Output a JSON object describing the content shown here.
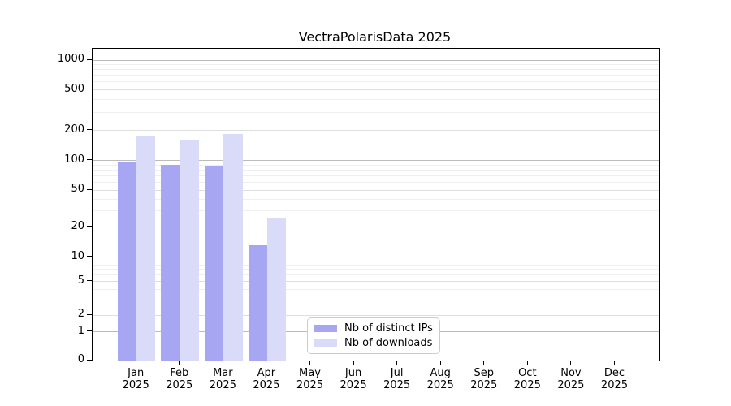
{
  "title": "VectraPolarisData 2025",
  "colors": {
    "distinct_ips": "#a6a6f2",
    "downloads": "#dadaf9",
    "grid_major": "#bcbcbc",
    "grid_labeled_minor": "#dedede",
    "grid_minor": "#efefef",
    "axis": "#000000",
    "legend_border": "#cccccc"
  },
  "chart_data": {
    "type": "bar",
    "title": "VectraPolarisData 2025",
    "categories": [
      "Jan",
      "Feb",
      "Mar",
      "Apr",
      "May",
      "Jun",
      "Jul",
      "Aug",
      "Sep",
      "Oct",
      "Nov",
      "Dec"
    ],
    "category_year": "2025",
    "series": [
      {
        "name": "Nb of distinct IPs",
        "color": "#a6a6f2",
        "values": [
          96,
          90,
          88,
          13,
          0,
          0,
          0,
          0,
          0,
          0,
          0,
          0
        ]
      },
      {
        "name": "Nb of downloads",
        "color": "#dadaf9",
        "values": [
          177,
          161,
          184,
          25,
          0,
          0,
          0,
          0,
          0,
          0,
          0,
          0
        ]
      }
    ],
    "y_axis": {
      "scale": "symlog",
      "ticks": [
        0,
        1,
        2,
        5,
        10,
        20,
        50,
        100,
        200,
        500,
        1000
      ],
      "ylim": [
        0,
        1000
      ],
      "minor_unlabeled": [
        3,
        4,
        6,
        7,
        8,
        9,
        30,
        40,
        60,
        70,
        80,
        90,
        300,
        400,
        600,
        700,
        800,
        900
      ]
    },
    "grid": true,
    "legend_position": "bottom-center"
  }
}
